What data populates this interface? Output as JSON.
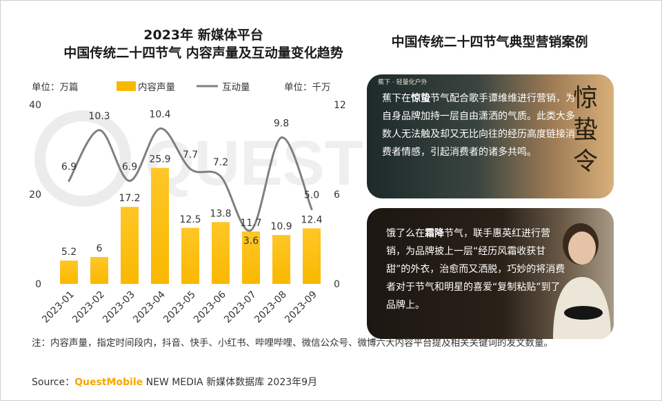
{
  "chart_title_line1": "2023年 新媒体平台",
  "chart_title_line2": "中国传统二十四节气 内容声量及互动量变化趋势",
  "right_title": "中国传统二十四节气典型营销案例",
  "left_unit": "单位：万篇",
  "right_unit": "单位：千万",
  "colors": {
    "bar": "#f9b800",
    "line": "#7f7f7f",
    "brand": "#f6a700"
  },
  "chart_data": {
    "type": "bar+line",
    "categories": [
      "2023-01",
      "2023-02",
      "2023-03",
      "2023-04",
      "2023-05",
      "2023-06",
      "2023-07",
      "2023-08",
      "2023-09"
    ],
    "series": [
      {
        "name": "内容声量",
        "type": "bar",
        "axis": "left",
        "values": [
          5.2,
          6.0,
          17.2,
          25.9,
          12.5,
          13.8,
          11.7,
          10.9,
          12.4
        ]
      },
      {
        "name": "互动量",
        "type": "line",
        "axis": "right",
        "values": [
          6.9,
          10.3,
          6.9,
          10.4,
          7.7,
          7.2,
          3.6,
          9.8,
          5.0
        ]
      }
    ],
    "left_ticks": [
      "0",
      "20",
      "40"
    ],
    "right_ticks": [
      "0",
      "6",
      "12"
    ],
    "ylim_left": [
      0,
      40
    ],
    "ylim_right": [
      0,
      12
    ],
    "legend_position": "top"
  },
  "case1": {
    "poster_tag": "蕉下 · 轻量化户外",
    "poster_title": "惊蛰令",
    "text_before": "蕉下在",
    "text_bold": "惊蛰",
    "text_after": "节气配合歌手谭维维进行营销，为自身品牌加持一层自由潇洒的气质。此类大多数人无法触及却又无比向往的经历高度链接消费者情感，引起消费者的诸多共鸣。"
  },
  "case2": {
    "text_before": "饿了么在",
    "text_bold": "霜降",
    "text_after": "节气，联手惠英红进行营销，为品牌披上一层“经历风霜收获甘甜”的外衣，治愈而又洒脱，巧妙的将消费者对于节气和明星的喜爱“复制粘贴”到了品牌上。"
  },
  "note": "注：内容声量，指定时间段内，抖音、快手、小红书、哔哩哔哩、微信公众号、微博六大内容平台提及相关关键词的发文数量。",
  "source_prefix": "Source：",
  "source_brand": "QuestMobile",
  "source_suffix": " NEW MEDIA 新媒体数据库 2023年9月",
  "watermark": "QUESTMOBILE"
}
